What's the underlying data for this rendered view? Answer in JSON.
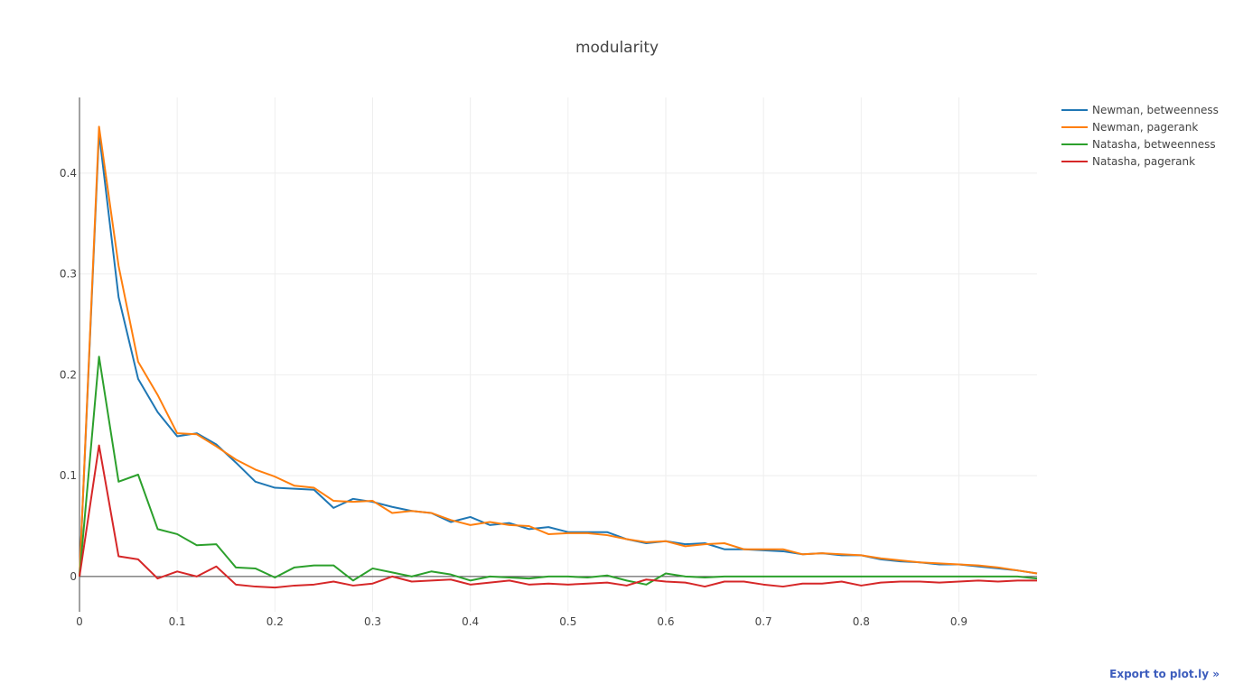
{
  "chart_data": {
    "type": "line",
    "title": "modularity",
    "xlabel": "",
    "ylabel": "",
    "xlim": [
      0,
      0.98
    ],
    "ylim": [
      -0.035,
      0.475
    ],
    "xticks": [
      0,
      0.1,
      0.2,
      0.3,
      0.4,
      0.5,
      0.6,
      0.7,
      0.8,
      0.9
    ],
    "xtick_labels": [
      "0",
      "0.1",
      "0.2",
      "0.3",
      "0.4",
      "0.5",
      "0.6",
      "0.7",
      "0.8",
      "0.9"
    ],
    "yticks": [
      0,
      0.1,
      0.2,
      0.3,
      0.4
    ],
    "ytick_labels": [
      "0",
      "0.1",
      "0.2",
      "0.3",
      "0.4"
    ],
    "grid": true,
    "legend_position": "top-right",
    "x": [
      0,
      0.02,
      0.04,
      0.06,
      0.08,
      0.1,
      0.12,
      0.14,
      0.16,
      0.18,
      0.2,
      0.22,
      0.24,
      0.26,
      0.28,
      0.3,
      0.32,
      0.34,
      0.36,
      0.38,
      0.4,
      0.42,
      0.44,
      0.46,
      0.48,
      0.5,
      0.52,
      0.54,
      0.56,
      0.58,
      0.6,
      0.62,
      0.64,
      0.66,
      0.68,
      0.7,
      0.72,
      0.74,
      0.76,
      0.78,
      0.8,
      0.82,
      0.84,
      0.86,
      0.88,
      0.9,
      0.92,
      0.94,
      0.96,
      0.98
    ],
    "series": [
      {
        "name": "Newman, betweenness",
        "color": "#1f77b4",
        "values": [
          0.0,
          0.44,
          0.277,
          0.196,
          0.163,
          0.139,
          0.142,
          0.131,
          0.113,
          0.094,
          0.088,
          0.087,
          0.086,
          0.068,
          0.077,
          0.074,
          0.069,
          0.065,
          0.063,
          0.054,
          0.059,
          0.051,
          0.053,
          0.047,
          0.049,
          0.044,
          0.044,
          0.044,
          0.037,
          0.033,
          0.035,
          0.032,
          0.033,
          0.027,
          0.027,
          0.026,
          0.025,
          0.022,
          0.023,
          0.021,
          0.021,
          0.017,
          0.015,
          0.014,
          0.012,
          0.012,
          0.01,
          0.008,
          0.006,
          0.003
        ]
      },
      {
        "name": "Newman, pagerank",
        "color": "#ff7f0e",
        "values": [
          0.0,
          0.446,
          0.308,
          0.213,
          0.18,
          0.142,
          0.141,
          0.129,
          0.116,
          0.106,
          0.099,
          0.09,
          0.088,
          0.075,
          0.074,
          0.075,
          0.063,
          0.065,
          0.063,
          0.056,
          0.051,
          0.054,
          0.051,
          0.05,
          0.042,
          0.043,
          0.043,
          0.041,
          0.037,
          0.034,
          0.035,
          0.03,
          0.032,
          0.033,
          0.027,
          0.027,
          0.027,
          0.022,
          0.023,
          0.022,
          0.021,
          0.018,
          0.016,
          0.014,
          0.013,
          0.012,
          0.011,
          0.009,
          0.006,
          0.003
        ]
      },
      {
        "name": "Natasha, betweenness",
        "color": "#2ca02c",
        "values": [
          0.0,
          0.218,
          0.094,
          0.101,
          0.047,
          0.042,
          0.031,
          0.032,
          0.009,
          0.008,
          -0.001,
          0.009,
          0.011,
          0.011,
          -0.004,
          0.008,
          0.004,
          0.0,
          0.005,
          0.002,
          -0.004,
          0.0,
          -0.001,
          -0.002,
          0.0,
          0.0,
          -0.001,
          0.001,
          -0.004,
          -0.008,
          0.003,
          0.0,
          -0.001,
          0.0,
          0.0,
          0.0,
          0.0,
          0.0,
          0.0,
          0.0,
          0.0,
          0.0,
          0.0,
          0.0,
          0.0,
          0.0,
          0.0,
          0.0,
          0.0,
          -0.002
        ]
      },
      {
        "name": "Natasha, pagerank",
        "color": "#d62728",
        "values": [
          0.0,
          0.13,
          0.02,
          0.017,
          -0.002,
          0.005,
          0.0,
          0.01,
          -0.008,
          -0.01,
          -0.011,
          -0.009,
          -0.008,
          -0.005,
          -0.009,
          -0.007,
          0.0,
          -0.005,
          -0.004,
          -0.003,
          -0.008,
          -0.006,
          -0.004,
          -0.008,
          -0.007,
          -0.008,
          -0.007,
          -0.006,
          -0.009,
          -0.003,
          -0.005,
          -0.006,
          -0.01,
          -0.005,
          -0.005,
          -0.008,
          -0.01,
          -0.007,
          -0.007,
          -0.005,
          -0.009,
          -0.006,
          -0.005,
          -0.005,
          -0.006,
          -0.005,
          -0.004,
          -0.005,
          -0.004,
          -0.004
        ]
      }
    ]
  },
  "export_label": "Export to plot.ly »"
}
